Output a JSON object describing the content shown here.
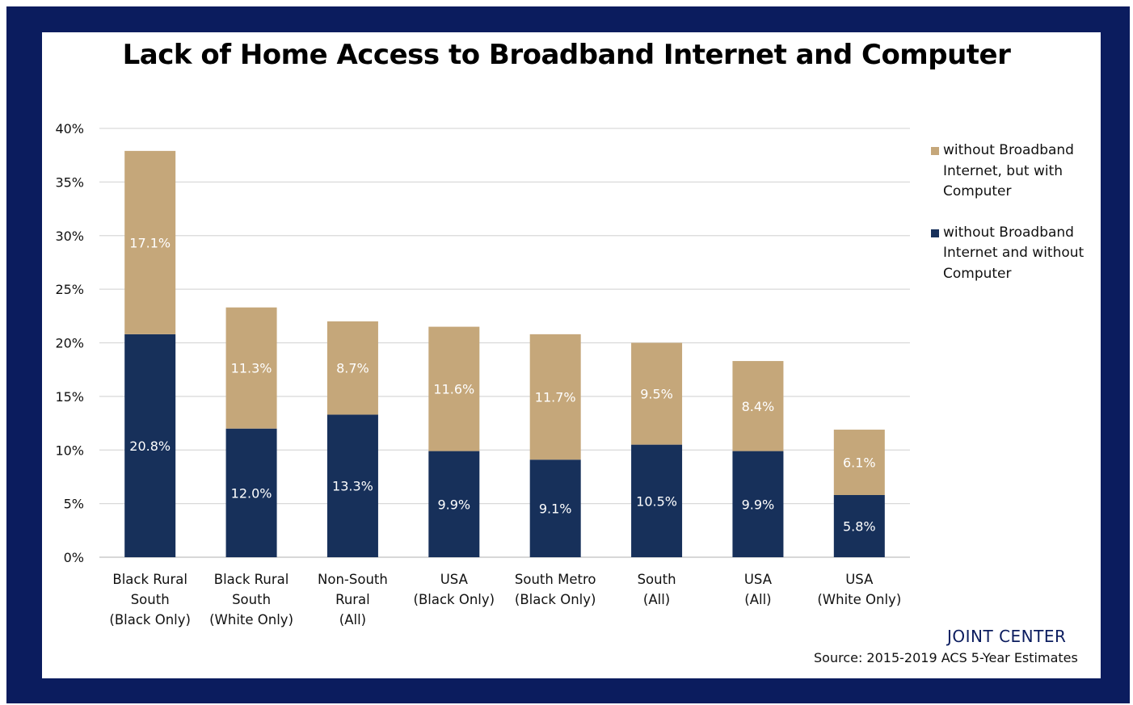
{
  "colors": {
    "frame": "#0b1c5e",
    "with_computer": "#c5a77a",
    "without_computer": "#17305a",
    "brand": "#0b1c5e"
  },
  "chart_data": {
    "type": "bar",
    "stacked": true,
    "title": "Lack of Home Access to Broadband Internet and Computer",
    "categories": [
      [
        "Black Rural",
        "South",
        "(Black Only)"
      ],
      [
        "Black Rural",
        "South",
        "(White Only)"
      ],
      [
        "Non-South",
        "Rural",
        "(All)"
      ],
      [
        "USA",
        "(Black Only)"
      ],
      [
        "South Metro",
        "(Black Only)"
      ],
      [
        "South",
        "(All)"
      ],
      [
        "USA",
        "(All)"
      ],
      [
        "USA",
        "(White Only)"
      ]
    ],
    "series": [
      {
        "name": "without Broadband Internet and without Computer",
        "values": [
          20.8,
          12.0,
          13.3,
          9.9,
          9.1,
          10.5,
          9.9,
          5.8
        ],
        "labels": [
          "20.8%",
          "12.0%",
          "13.3%",
          "9.9%",
          "9.1%",
          "10.5%",
          "9.9%",
          "5.8%"
        ]
      },
      {
        "name": "without Broadband Internet, but with Computer",
        "values": [
          17.1,
          11.3,
          8.7,
          11.6,
          11.7,
          9.5,
          8.4,
          6.1
        ],
        "labels": [
          "17.1%",
          "11.3%",
          "8.7%",
          "11.6%",
          "11.7%",
          "9.5%",
          "8.4%",
          "6.1%"
        ]
      }
    ],
    "yticks": [
      "0%",
      "5%",
      "10%",
      "15%",
      "20%",
      "25%",
      "30%",
      "35%",
      "40%"
    ],
    "ylim": [
      0,
      40
    ],
    "grid": true,
    "legend_position": "right"
  },
  "legend": {
    "with_computer_lines": [
      "without Broadband",
      "Internet, but with",
      "Computer"
    ],
    "without_computer_lines": [
      "without Broadband",
      "Internet and without",
      "Computer"
    ]
  },
  "brand_text": "JOINT CENTER",
  "source_text": "Source: 2015-2019 ACS 5-Year Estimates"
}
